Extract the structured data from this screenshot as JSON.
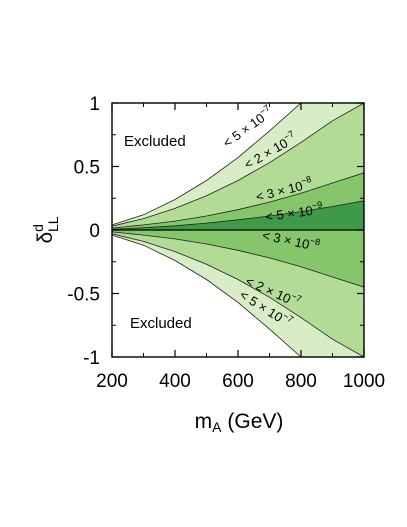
{
  "chart_data": {
    "type": "area",
    "xlabel": "m",
    "xlabel_sub": "A",
    "xlabel_unit": "(GeV)",
    "ylabel": "δ",
    "ylabel_sup": "d",
    "ylabel_sub": "LL",
    "xlim": [
      200,
      1000
    ],
    "ylim": [
      -1,
      1
    ],
    "xticks": [
      "200",
      "400",
      "600",
      "800",
      "1000"
    ],
    "yticks": [
      "1",
      "0.5",
      "0",
      "-0.5",
      "-1"
    ],
    "grid": false,
    "colors": {
      "excluded": "#ffffff",
      "band_5e-7": "#d8edc6",
      "band_2e-7": "#b2dc96",
      "band_3e-8": "#86c66b",
      "band_5e-9": "#3f9a47",
      "boundary": "#222222"
    },
    "series": [
      {
        "name": "< 5 × 10⁻⁷",
        "x": [
          200,
          300,
          400,
          500,
          600,
          700,
          800,
          900,
          1000
        ],
        "upper": [
          0.04,
          0.12,
          0.24,
          0.39,
          0.57,
          0.78,
          1.0,
          1.0,
          1.0
        ],
        "lower": [
          -0.04,
          -0.12,
          -0.24,
          -0.39,
          -0.57,
          -0.78,
          -1.0,
          -1.0,
          -1.0
        ]
      },
      {
        "name": "< 2 × 10⁻⁷",
        "x": [
          200,
          300,
          400,
          500,
          600,
          700,
          800,
          900,
          1000
        ],
        "upper": [
          0.03,
          0.09,
          0.17,
          0.27,
          0.39,
          0.53,
          0.69,
          0.86,
          1.0
        ],
        "lower": [
          -0.03,
          -0.09,
          -0.17,
          -0.27,
          -0.39,
          -0.53,
          -0.69,
          -0.86,
          -1.0
        ]
      },
      {
        "name": "< 3 × 10⁻⁸",
        "x": [
          200,
          300,
          400,
          500,
          600,
          700,
          800,
          900,
          1000
        ],
        "upper": [
          0.015,
          0.04,
          0.07,
          0.11,
          0.16,
          0.22,
          0.29,
          0.37,
          0.45
        ],
        "lower": [
          -0.015,
          -0.04,
          -0.07,
          -0.11,
          -0.16,
          -0.22,
          -0.29,
          -0.37,
          -0.45
        ]
      },
      {
        "name": "< 5 × 10⁻⁹",
        "x": [
          200,
          300,
          400,
          500,
          600,
          700,
          800,
          900,
          1000
        ],
        "upper": [
          0.006,
          0.017,
          0.033,
          0.054,
          0.08,
          0.11,
          0.145,
          0.185,
          0.23
        ],
        "lower": [
          0,
          0,
          0,
          0,
          0,
          0,
          0,
          0,
          0
        ]
      }
    ],
    "annotations": {
      "excluded_top": "Excluded",
      "excluded_bottom": "Excluded",
      "u_5e7": {
        "text": "< 5 × 10",
        "exp": "−7",
        "x": 640,
        "y": 0.78
      },
      "u_2e7": {
        "text": "< 2 × 10",
        "exp": "−7",
        "x": 710,
        "y": 0.59
      },
      "u_3e8": {
        "text": "< 3 × 10",
        "exp": "−8",
        "x": 750,
        "y": 0.28
      },
      "m_5e9": {
        "text": "< 5 × 10",
        "exp": "−9",
        "x": 780,
        "y": 0.1
      },
      "l_3e8": {
        "text": "< 3 × 10",
        "exp": "−8",
        "x": 765,
        "y": -0.12
      },
      "l_2e7": {
        "text": "< 2 × 10",
        "exp": "−7",
        "x": 705,
        "y": -0.52
      },
      "l_5e7": {
        "text": "< 5 × 10",
        "exp": "−7",
        "x": 680,
        "y": -0.65
      }
    }
  }
}
